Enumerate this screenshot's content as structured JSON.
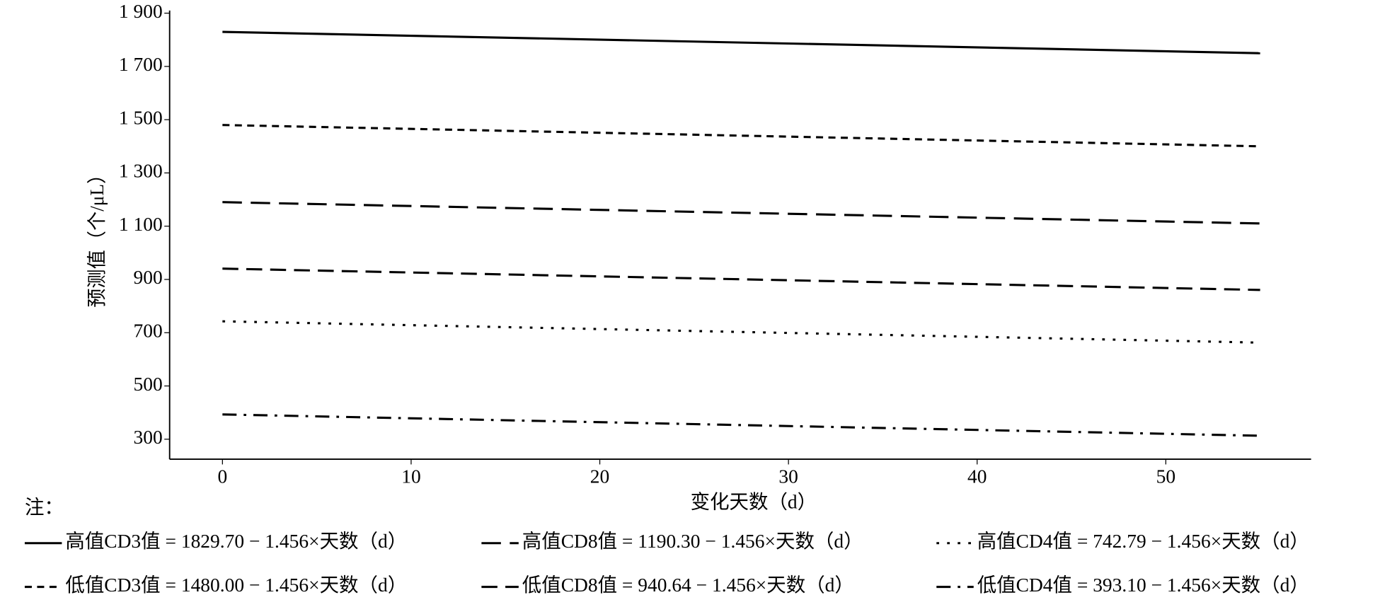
{
  "chart_data": {
    "type": "line",
    "x_label": "变化天数（d）",
    "y_label": "预测值（个/μL）",
    "note": "注：",
    "x": [
      0,
      55
    ],
    "xlim": [
      -2.8,
      57.7
    ],
    "xticks": [
      0,
      10,
      20,
      30,
      40,
      50
    ],
    "ylim": [
      225,
      1910
    ],
    "yticks": [
      {
        "value": 300,
        "label": "300"
      },
      {
        "value": 500,
        "label": "500"
      },
      {
        "value": 700,
        "label": "700"
      },
      {
        "value": 900,
        "label": "900"
      },
      {
        "value": 1100,
        "label": "1 100"
      },
      {
        "value": 1300,
        "label": "1 300"
      },
      {
        "value": 1500,
        "label": "1 500"
      },
      {
        "value": 1700,
        "label": "1 700"
      },
      {
        "value": 1900,
        "label": "1 900"
      }
    ],
    "series": [
      {
        "name": "高值CD3值 = 1829.70 − 1.456×天数（d）",
        "color": "#000000",
        "dash": "none",
        "values": [
          1829.7,
          1749.62
        ]
      },
      {
        "name": "高值CD8值 = 1190.30 − 1.456×天数（d）",
        "color": "#000000",
        "dash": "22,10",
        "values": [
          1190.3,
          1110.22
        ]
      },
      {
        "name": "高值CD4值 = 742.79 − 1.456×天数（d）",
        "color": "#000000",
        "dash": "3,9",
        "values": [
          742.79,
          662.71
        ]
      },
      {
        "name": "低值CD3值 = 1480.00 − 1.456×天数（d）",
        "color": "#000000",
        "dash": "8,6",
        "values": [
          1480.0,
          1399.92
        ]
      },
      {
        "name": "低值CD8值 = 940.64 − 1.456×天数（d）",
        "color": "#000000",
        "dash": "18,9",
        "values": [
          940.64,
          860.56
        ]
      },
      {
        "name": "低值CD4值 = 393.10 − 1.456×天数（d）",
        "color": "#000000",
        "dash": "16,8,3,8",
        "values": [
          393.1,
          313.02
        ]
      }
    ]
  }
}
